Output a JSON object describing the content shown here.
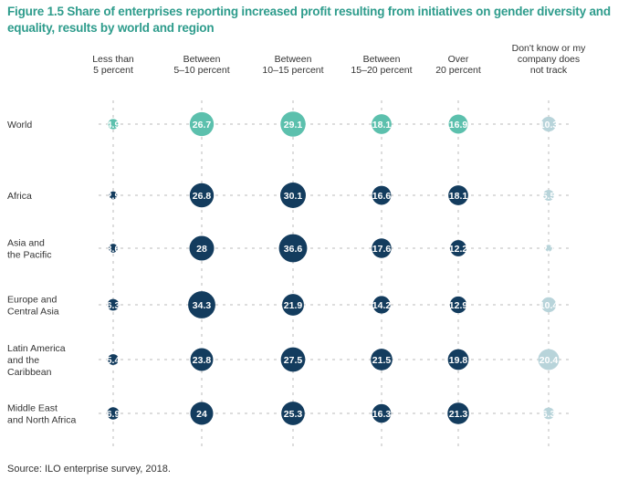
{
  "title": "Figure 1.5 Share of enterprises reporting increased profit resulting from initiatives on gender diversity and equality, results by world and region",
  "source": "Source: ILO enterprise survey, 2018.",
  "colors": {
    "world": "#5cc0ad",
    "region": "#133c5e",
    "dont_know": "#b8d4da",
    "axis": "#bbbbbb",
    "title": "#2e9c8c"
  },
  "chart_data": {
    "type": "bubble",
    "title": "Figure 1.5 Share of enterprises reporting increased profit resulting from initiatives on gender diversity and equality, results by world and region",
    "columns": [
      [
        "Less than",
        "5 percent"
      ],
      [
        "Between",
        "5–10 percent"
      ],
      [
        "Between",
        "10–15 percent"
      ],
      [
        "Between",
        "15–20 percent"
      ],
      [
        "Over",
        "20 percent"
      ],
      [
        "Don't know or my",
        "company does",
        "not track"
      ]
    ],
    "rows": [
      {
        "label": [
          "World"
        ],
        "values": [
          4.9,
          26.7,
          29.1,
          18.1,
          16.9,
          10.3
        ]
      },
      {
        "label": [
          "Africa"
        ],
        "values": [
          2.9,
          26.8,
          30.1,
          16.6,
          18.1,
          5.5
        ]
      },
      {
        "label": [
          "Asia and",
          "the Pacific"
        ],
        "values": [
          3.6,
          28,
          36.6,
          17.6,
          12.2,
          2.1
        ]
      },
      {
        "label": [
          "Europe and",
          "Central Asia"
        ],
        "values": [
          6.3,
          34.3,
          21.9,
          14.2,
          12.9,
          10.4
        ]
      },
      {
        "label": [
          "Latin America",
          "and the",
          "Caribbean"
        ],
        "values": [
          5.4,
          23.8,
          27.5,
          21.5,
          19.8,
          20.4
        ]
      },
      {
        "label": [
          "Middle East",
          "and North Africa"
        ],
        "values": [
          6.9,
          24,
          25.3,
          16.3,
          21.3,
          6.3
        ]
      }
    ],
    "unit": "percent"
  }
}
